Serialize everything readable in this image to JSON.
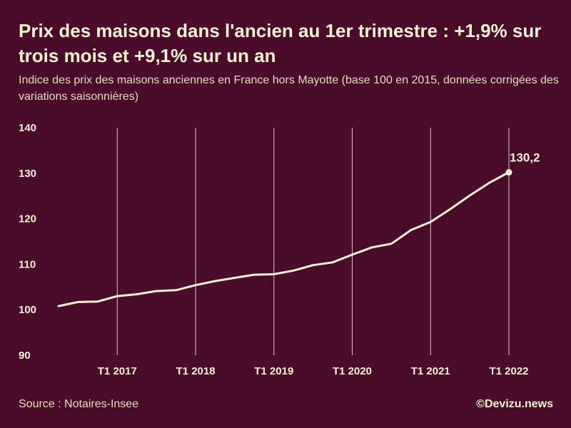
{
  "header": {
    "title": "Prix des maisons dans l'ancien au 1er trimestre : +1,9% sur trois mois et +9,1% sur un an",
    "subtitle": "Indice des prix des maisons anciennes en France hors Mayotte (base 100 en 2015, données corrigées des variations saisonnières)"
  },
  "footer": {
    "source": "Source : Notaires-Insee",
    "brand": "©Devizu.news"
  },
  "colors": {
    "background": "#4a0b2a",
    "line": "#fbf3d4",
    "gridline": "#d9cdb0"
  },
  "chart_data": {
    "type": "line",
    "title": "Prix des maisons dans l'ancien au 1er trimestre : +1,9% sur trois mois et +9,1% sur un an",
    "subtitle": "Indice des prix des maisons anciennes en France hors Mayotte (base 100 en 2015, données corrigées des variations saisonnières)",
    "xlabel": "",
    "ylabel": "",
    "x": [
      "T2 2016",
      "T3 2016",
      "T4 2016",
      "T1 2017",
      "T2 2017",
      "T3 2017",
      "T4 2017",
      "T1 2018",
      "T2 2018",
      "T3 2018",
      "T4 2018",
      "T1 2019",
      "T2 2019",
      "T3 2019",
      "T4 2019",
      "T1 2020",
      "T2 2020",
      "T3 2020",
      "T4 2020",
      "T1 2021",
      "T2 2021",
      "T3 2021",
      "T4 2021",
      "T1 2022"
    ],
    "series": [
      {
        "values": [
          100.8,
          101.7,
          101.8,
          103.0,
          103.4,
          104.1,
          104.3,
          105.4,
          106.3,
          107.0,
          107.7,
          107.8,
          108.6,
          109.8,
          110.4,
          112.1,
          113.7,
          114.5,
          117.5,
          119.3,
          122.1,
          125.1,
          127.9,
          130.2
        ]
      }
    ],
    "xticks": [
      "T1 2017",
      "T1 2018",
      "T1 2019",
      "T1 2020",
      "T1 2021",
      "T1 2022"
    ],
    "yticks": [
      90,
      100,
      110,
      120,
      130,
      140
    ],
    "ylim": [
      90,
      140
    ],
    "grid": "vertical lines at T1 of each year",
    "annotations": [
      {
        "x": "T1 2022",
        "value": 130.2,
        "label": "130,2"
      }
    ]
  }
}
